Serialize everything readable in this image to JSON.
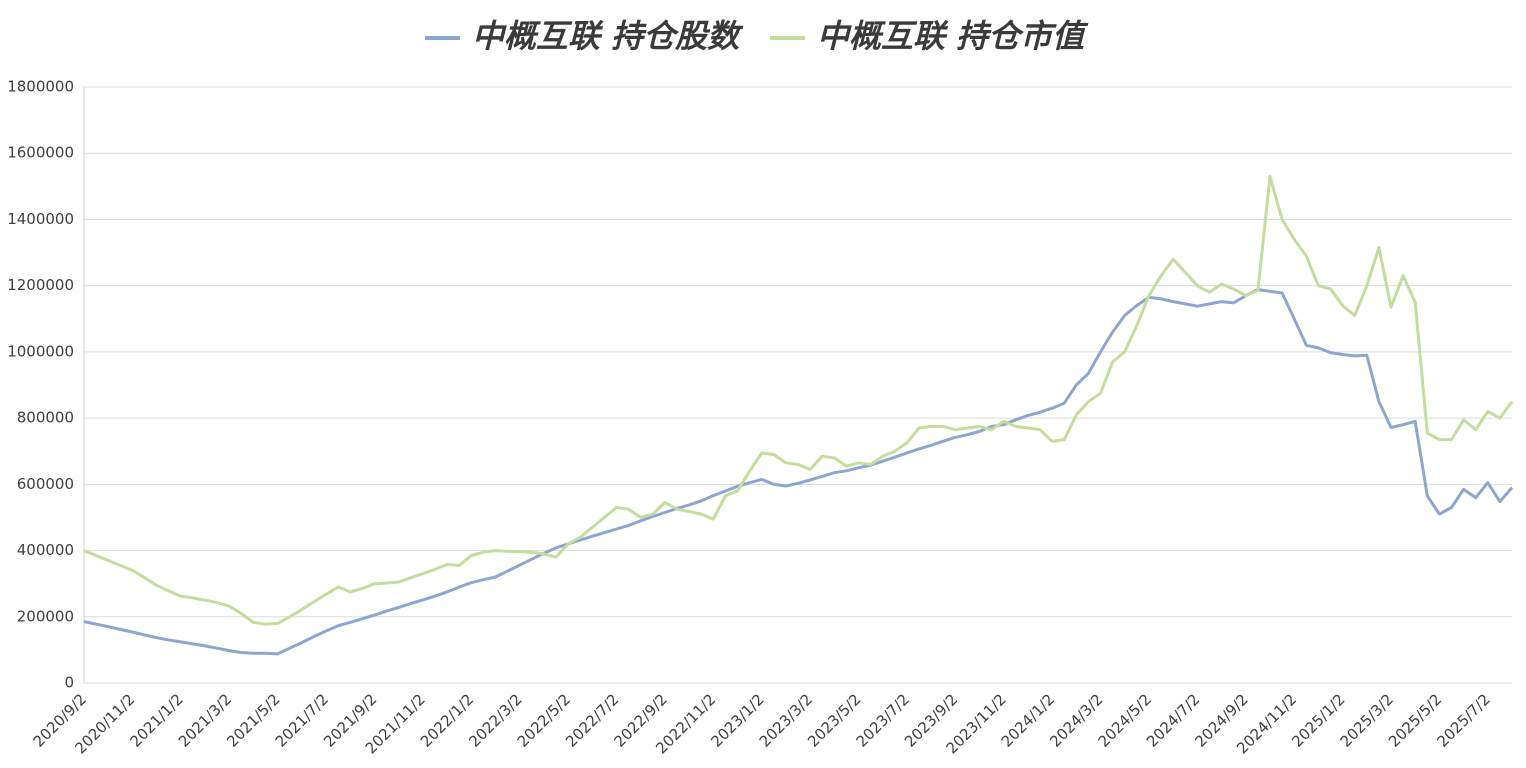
{
  "chart_data": {
    "type": "line",
    "categories": [
      "2020/9/2",
      null,
      null,
      null,
      "2020/11/2",
      null,
      null,
      null,
      "2021/1/2",
      null,
      null,
      null,
      "2021/3/2",
      null,
      null,
      null,
      "2021/5/2",
      null,
      null,
      null,
      "2021/7/2",
      null,
      null,
      null,
      "2021/9/2",
      null,
      null,
      null,
      "2021/11/2",
      null,
      null,
      null,
      "2022/1/2",
      null,
      null,
      null,
      "2022/3/2",
      null,
      null,
      null,
      "2022/5/2",
      null,
      null,
      null,
      "2022/7/2",
      null,
      null,
      null,
      "2022/9/2",
      null,
      null,
      null,
      "2022/11/2",
      null,
      null,
      null,
      "2023/1/2",
      null,
      null,
      null,
      "2023/3/2",
      null,
      null,
      null,
      "2023/5/2",
      null,
      null,
      null,
      "2023/7/2",
      null,
      null,
      null,
      "2023/9/2",
      null,
      null,
      null,
      "2023/11/2",
      null,
      null,
      null,
      "2024/1/2",
      null,
      null,
      null,
      "2024/3/2",
      null,
      null,
      null,
      "2024/5/2",
      null,
      null,
      null,
      "2024/7/2",
      null,
      null,
      null,
      "2024/9/2",
      null,
      null,
      null,
      "2024/11/2",
      null,
      null,
      null,
      "2025/1/2",
      null,
      null,
      null,
      "2025/3/2",
      null,
      null,
      null,
      "2025/5/2",
      null,
      null,
      null,
      "2025/7/2",
      null,
      null
    ],
    "series": [
      {
        "name": "中概互联 持仓股数",
        "color": "#8ea5cf",
        "values": [
          185000,
          178000,
          170000,
          162000,
          154000,
          145000,
          137000,
          130000,
          124000,
          118000,
          112000,
          105000,
          98000,
          92000,
          90000,
          90000,
          88000,
          105000,
          122000,
          140000,
          157000,
          173000,
          183000,
          194000,
          205000,
          217000,
          228000,
          240000,
          251000,
          262000,
          275000,
          290000,
          303000,
          312000,
          320000,
          338000,
          356000,
          374000,
          392000,
          408000,
          420000,
          432000,
          443000,
          454000,
          465000,
          476000,
          490000,
          503000,
          515000,
          527000,
          538000,
          550000,
          566000,
          580000,
          594000,
          605000,
          615000,
          600000,
          595000,
          603000,
          613000,
          624000,
          635000,
          641000,
          650000,
          658000,
          670000,
          682000,
          695000,
          707000,
          718000,
          730000,
          742000,
          750000,
          760000,
          775000,
          780000,
          795000,
          808000,
          818000,
          830000,
          845000,
          900000,
          935000,
          1000000,
          1060000,
          1110000,
          1140000,
          1165000,
          1160000,
          1152000,
          1145000,
          1138000,
          1145000,
          1152000,
          1148000,
          1170000,
          1188000,
          1183000,
          1178000,
          1100000,
          1020000,
          1012000,
          998000,
          992000,
          988000,
          990000,
          850000,
          772000,
          780000,
          790000,
          565000,
          510000,
          530000,
          585000,
          560000,
          605000,
          548000,
          590000
        ]
      },
      {
        "name": "中概互联 持仓市值",
        "color": "#c5dc9e",
        "values": [
          400000,
          385000,
          370000,
          355000,
          340000,
          318000,
          295000,
          278000,
          262000,
          257000,
          250000,
          243000,
          232000,
          210000,
          183000,
          178000,
          180000,
          200000,
          222000,
          245000,
          268000,
          290000,
          275000,
          285000,
          300000,
          302000,
          305000,
          318000,
          330000,
          343000,
          358000,
          355000,
          385000,
          395000,
          400000,
          398000,
          397000,
          395000,
          390000,
          380000,
          420000,
          440000,
          470000,
          500000,
          530000,
          525000,
          500000,
          510000,
          545000,
          525000,
          518000,
          510000,
          495000,
          565000,
          580000,
          640000,
          695000,
          690000,
          665000,
          660000,
          645000,
          685000,
          680000,
          655000,
          665000,
          660000,
          685000,
          700000,
          725000,
          770000,
          775000,
          775000,
          765000,
          770000,
          775000,
          765000,
          790000,
          775000,
          770000,
          765000,
          730000,
          735000,
          810000,
          850000,
          875000,
          970000,
          1000000,
          1080000,
          1170000,
          1230000,
          1280000,
          1240000,
          1200000,
          1180000,
          1205000,
          1190000,
          1170000,
          1185000,
          1530000,
          1400000,
          1340000,
          1290000,
          1200000,
          1190000,
          1140000,
          1110000,
          1200000,
          1315000,
          1135000,
          1230000,
          1150000,
          755000,
          735000,
          735000,
          795000,
          765000,
          820000,
          800000,
          850000
        ]
      }
    ],
    "ylim": [
      0,
      1800000
    ],
    "yticks": [
      0,
      200000,
      400000,
      600000,
      800000,
      1000000,
      1200000,
      1400000,
      1600000,
      1800000
    ],
    "grid": true,
    "legend": "top"
  }
}
